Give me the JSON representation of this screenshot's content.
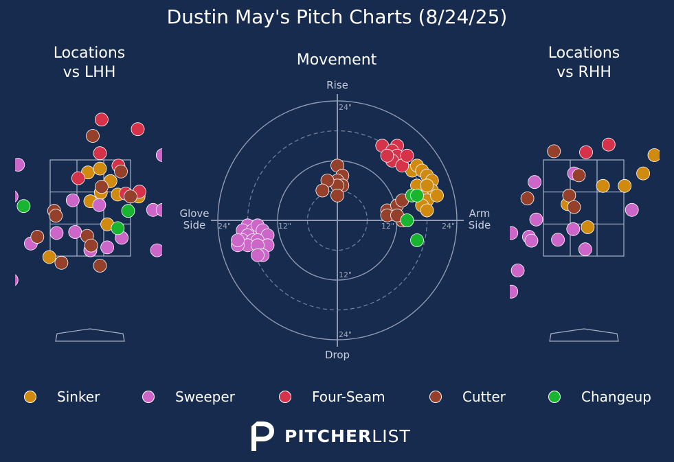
{
  "title": "Dustin May's Pitch Charts (8/24/25)",
  "panels": {
    "lhh_title": "Locations\nvs LHH",
    "movement_title": "Movement",
    "rhh_title": "Locations\nvs RHH"
  },
  "movement_labels": {
    "top": "Rise",
    "bottom": "Drop",
    "left": "Glove\nSide",
    "right": "Arm\nSide",
    "ring_labels": [
      "12\"",
      "24\""
    ]
  },
  "colors": {
    "Sinker": "#d18a10",
    "Sweeper": "#cc66c8",
    "Four-Seam": "#d6324a",
    "Cutter": "#94402b",
    "Changeup": "#1ab530"
  },
  "legend": [
    {
      "name": "Sinker",
      "color": "#d18a10"
    },
    {
      "name": "Sweeper",
      "color": "#cc66c8"
    },
    {
      "name": "Four-Seam",
      "color": "#d6324a"
    },
    {
      "name": "Cutter",
      "color": "#94402b"
    },
    {
      "name": "Changeup",
      "color": "#1ab530"
    }
  ],
  "brand": {
    "bold": "PITCHER",
    "light": "LIST",
    "logo_icon": "pitcherlist-p-icon"
  },
  "chart_data": [
    {
      "type": "scatter",
      "title": "Locations vs LHH",
      "x_unit": "zone-widths",
      "y_unit": "zone-heights",
      "series": [
        {
          "name": "Sinker",
          "points": [
            [
              0.47,
              0.13
            ],
            [
              0.62,
              0.09
            ],
            [
              0.75,
              0.22
            ],
            [
              0.63,
              0.34
            ],
            [
              0.5,
              0.43
            ],
            [
              0.71,
              0.67
            ],
            [
              -0.01,
              1.01
            ],
            [
              0.84,
              0.36
            ],
            [
              1.1,
              0.38
            ]
          ]
        },
        {
          "name": "Sweeper",
          "points": [
            [
              -0.48,
              0.38
            ],
            [
              -0.4,
              0.05
            ],
            [
              0.28,
              0.42
            ],
            [
              0.61,
              0.47
            ],
            [
              0.31,
              0.75
            ],
            [
              0.08,
              0.76
            ],
            [
              0.89,
              0.81
            ],
            [
              0.71,
              0.91
            ],
            [
              0.5,
              0.94
            ],
            [
              1.28,
              0.52
            ],
            [
              1.4,
              0.52
            ],
            [
              1.33,
              0.94
            ],
            [
              1.4,
              -0.05
            ],
            [
              -0.24,
              0.87
            ],
            [
              -0.48,
              1.25
            ]
          ]
        },
        {
          "name": "Four-Seam",
          "points": [
            [
              0.64,
              -0.42
            ],
            [
              1.09,
              -0.32
            ],
            [
              0.62,
              -0.07
            ],
            [
              0.85,
              0.06
            ],
            [
              0.35,
              0.19
            ],
            [
              0.94,
              0.35
            ],
            [
              1.11,
              0.33
            ]
          ]
        },
        {
          "name": "Cutter",
          "points": [
            [
              0.53,
              -0.25
            ],
            [
              0.88,
              0.12
            ],
            [
              0.64,
              0.28
            ],
            [
              0.05,
              0.53
            ],
            [
              0.07,
              0.58
            ],
            [
              -0.16,
              0.8
            ],
            [
              0.46,
              0.79
            ],
            [
              0.51,
              0.89
            ],
            [
              0.14,
              1.07
            ],
            [
              0.62,
              1.1
            ],
            [
              1.0,
              0.38
            ]
          ]
        },
        {
          "name": "Changeup",
          "points": [
            [
              -0.33,
              0.48
            ],
            [
              0.97,
              0.53
            ],
            [
              0.84,
              0.71
            ]
          ]
        }
      ]
    },
    {
      "type": "scatter",
      "title": "Movement",
      "x_unit": "inches",
      "y_unit": "inches",
      "ring_levels": [
        6,
        12,
        18,
        24
      ],
      "series": [
        {
          "name": "Sinker",
          "points": [
            [
              15,
              10
            ],
            [
              16,
              11
            ],
            [
              17,
              10
            ],
            [
              18,
              9
            ],
            [
              19,
              8
            ],
            [
              19,
              6
            ],
            [
              17,
              5
            ],
            [
              18,
              4
            ],
            [
              20,
              5
            ],
            [
              17,
              3
            ],
            [
              18,
              2
            ],
            [
              16,
              7
            ],
            [
              18,
              7
            ]
          ]
        },
        {
          "name": "Sweeper",
          "points": [
            [
              -18,
              -1
            ],
            [
              -19,
              -2
            ],
            [
              -17,
              -2
            ],
            [
              -16,
              -3
            ],
            [
              -18,
              -3
            ],
            [
              -16,
              -1
            ],
            [
              -15,
              -2
            ],
            [
              -14,
              -3
            ],
            [
              -19,
              -4
            ],
            [
              -17,
              -4
            ],
            [
              -16,
              -4
            ],
            [
              -14,
              -5
            ],
            [
              -18,
              -5
            ],
            [
              -20,
              -5
            ],
            [
              -20,
              -4
            ],
            [
              -16,
              -5
            ],
            [
              -15,
              -7
            ],
            [
              -16,
              -7
            ]
          ]
        },
        {
          "name": "Four-Seam",
          "points": [
            [
              9,
              15
            ],
            [
              12,
              15
            ],
            [
              11,
              14
            ],
            [
              12,
              13
            ],
            [
              11,
              12
            ],
            [
              13,
              11
            ],
            [
              10,
              13
            ],
            [
              14,
              13
            ]
          ]
        },
        {
          "name": "Cutter",
          "points": [
            [
              0,
              11
            ],
            [
              1,
              9
            ],
            [
              0,
              8
            ],
            [
              1,
              7
            ],
            [
              0,
              7
            ],
            [
              -2,
              8
            ],
            [
              -3,
              6
            ],
            [
              0,
              5
            ],
            [
              10,
              2
            ],
            [
              12,
              3
            ],
            [
              13,
              4
            ],
            [
              10,
              1
            ],
            [
              13,
              0
            ],
            [
              12,
              1
            ],
            [
              14,
              0
            ]
          ]
        },
        {
          "name": "Changeup",
          "points": [
            [
              15,
              5
            ],
            [
              16,
              5
            ],
            [
              14,
              0
            ],
            [
              16,
              -4
            ]
          ]
        }
      ]
    },
    {
      "type": "scatter",
      "title": "Locations vs RHH",
      "x_unit": "zone-widths",
      "y_unit": "zone-heights",
      "series": [
        {
          "name": "Sinker",
          "points": [
            [
              0.3,
              0.46
            ],
            [
              0.74,
              0.27
            ],
            [
              1.01,
              0.27
            ],
            [
              1.24,
              0.14
            ],
            [
              1.38,
              -0.05
            ],
            [
              0.55,
              0.7
            ]
          ]
        },
        {
          "name": "Sweeper",
          "points": [
            [
              -0.11,
              0.23
            ],
            [
              0.38,
              0.14
            ],
            [
              -0.09,
              0.62
            ],
            [
              0.37,
              0.72
            ],
            [
              0.52,
              0.93
            ],
            [
              0.18,
              0.83
            ],
            [
              -0.18,
              0.8
            ],
            [
              -0.15,
              0.84
            ],
            [
              -0.4,
              0.76
            ],
            [
              -0.32,
              1.15
            ],
            [
              -0.4,
              1.37
            ],
            [
              1.1,
              0.52
            ]
          ]
        },
        {
          "name": "Four-Seam",
          "points": [
            [
              0.53,
              -0.08
            ],
            [
              0.81,
              -0.16
            ]
          ]
        },
        {
          "name": "Cutter",
          "points": [
            [
              0.13,
              -0.09
            ],
            [
              0.44,
              0.16
            ],
            [
              0.32,
              0.37
            ],
            [
              0.38,
              0.49
            ],
            [
              -0.2,
              0.4
            ]
          ]
        },
        {
          "name": "Changeup",
          "points": []
        }
      ]
    }
  ]
}
